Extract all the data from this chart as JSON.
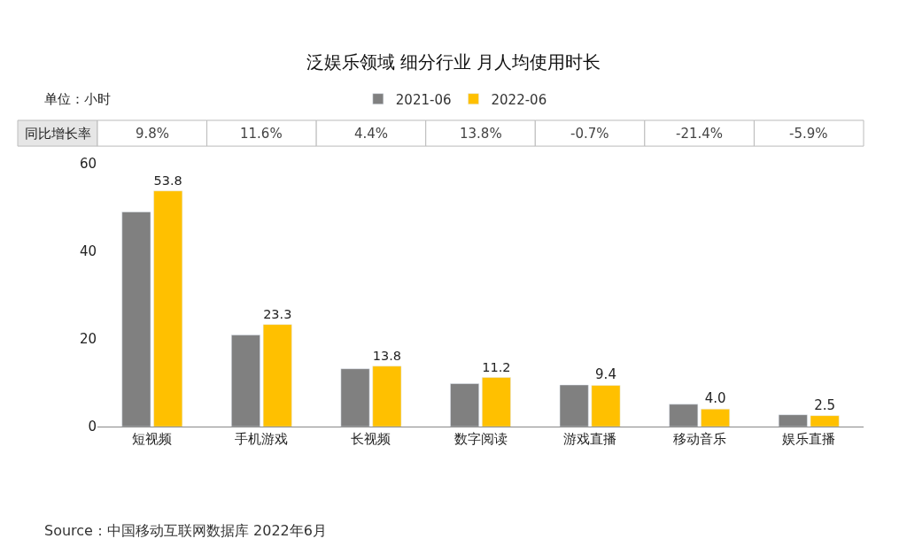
{
  "chart_data": {
    "type": "bar",
    "title": "泛娱乐领域 细分行业 月人均使用时长",
    "categories": [
      "短视频",
      "手机游戏",
      "长视频",
      "数字阅读",
      "游戏直播",
      "移动音乐",
      "娱乐直播"
    ],
    "series": [
      {
        "name": "2021-06",
        "color": "#808080",
        "values": [
          49.0,
          20.9,
          13.2,
          9.8,
          9.5,
          5.1,
          2.7
        ]
      },
      {
        "name": "2022-06",
        "color": "#ffc000",
        "values": [
          53.8,
          23.3,
          13.8,
          11.2,
          9.4,
          4.0,
          2.5
        ],
        "value_labels": [
          "53.8",
          "23.3",
          "13.8",
          "11.2",
          "9.4",
          "4.0",
          "2.5"
        ]
      }
    ],
    "ylim": [
      0,
      60
    ],
    "yticks": [
      0,
      20,
      40,
      60
    ],
    "legend": "top",
    "annotations": [
      "单位：小时",
      "同比增长率",
      "9.8%",
      "11.6%",
      "4.4%",
      "13.8%",
      "-0.7%",
      "-21.4%",
      "-5.9%",
      "Source：中国移动互联网数据库 2022年6月"
    ]
  }
}
